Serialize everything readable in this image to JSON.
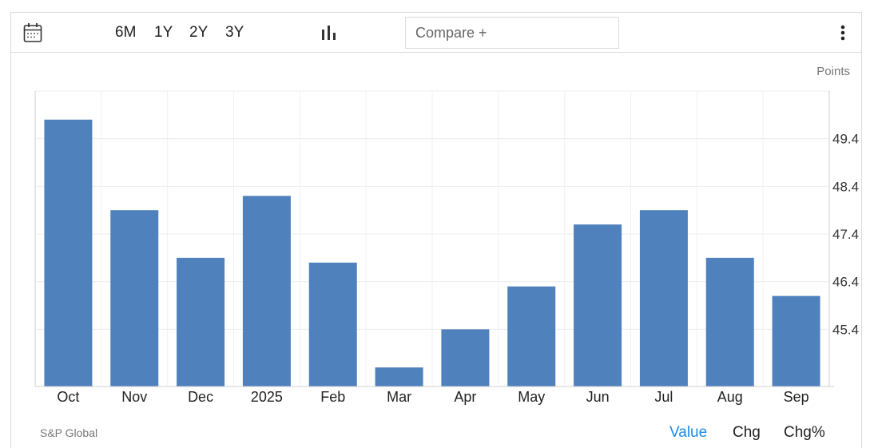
{
  "toolbar": {
    "calendar_icon": "calendar-icon",
    "ranges": [
      "6M",
      "1Y",
      "2Y",
      "3Y"
    ],
    "chart_type_icon": "bar-chart-icon",
    "compare_placeholder": "Compare +",
    "more_icon": "more-vertical-icon"
  },
  "footer": {
    "source": "S&P Global",
    "views": [
      "Value",
      "Chg",
      "Chg%"
    ],
    "active_view": "Value"
  },
  "colors": {
    "bar": "#4f81bd",
    "grid": "#ececec",
    "active": "#1e88e5"
  },
  "chart_data": {
    "type": "bar",
    "unit_label": "Points",
    "categories": [
      "Oct",
      "Nov",
      "Dec",
      "2025",
      "Feb",
      "Mar",
      "Apr",
      "May",
      "Jun",
      "Jul",
      "Aug",
      "Sep"
    ],
    "values": [
      49.8,
      47.9,
      46.9,
      48.2,
      46.8,
      44.6,
      45.4,
      46.3,
      47.6,
      47.9,
      46.9,
      46.1
    ],
    "ylim": [
      44.2,
      50.4
    ],
    "yticks": [
      45.4,
      46.4,
      47.4,
      48.4,
      49.4
    ],
    "ytick_labels": [
      "45.4",
      "46.4",
      "47.4",
      "48.4",
      "49.4"
    ],
    "grid": true,
    "y_axis_side": "right"
  }
}
